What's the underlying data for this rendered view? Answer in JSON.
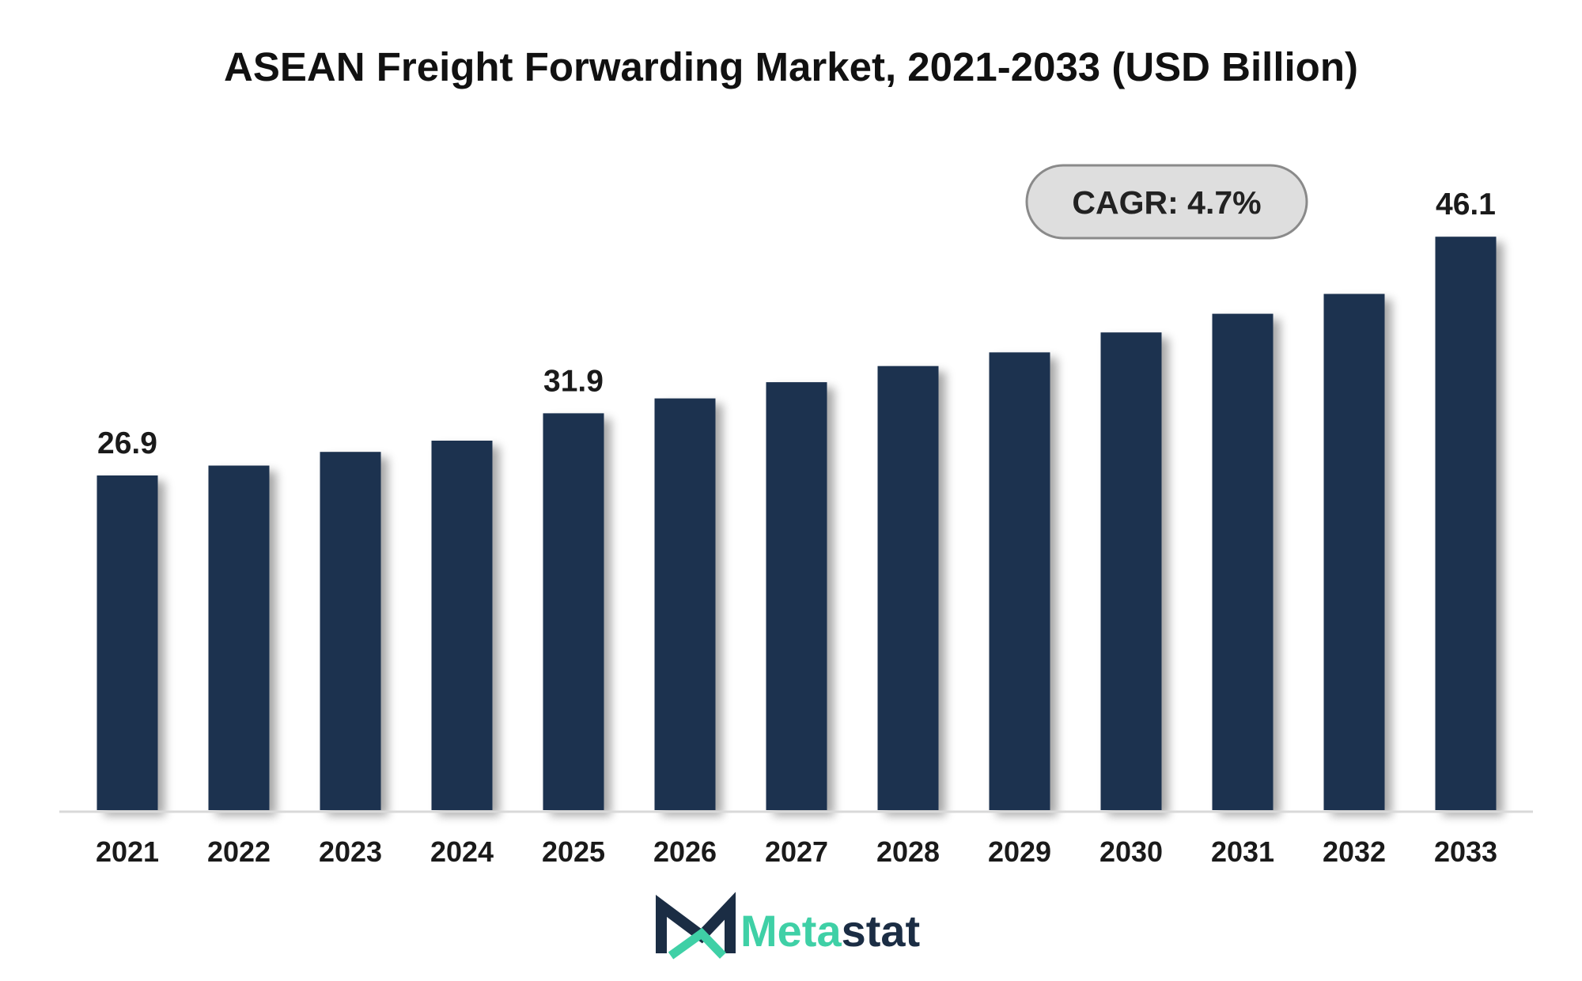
{
  "colors": {
    "bar": "#1b3150",
    "baseline": "#d9d9d9",
    "cagr_fill": "#dedede",
    "cagr_stroke": "#8a8a8a",
    "logo_accent": "#3fd0a6",
    "logo_dark": "#1b2d44"
  },
  "cagr_label": "CAGR: 4.7%",
  "logo": {
    "brand_part1": "Meta",
    "brand_part2": "stat",
    "icon": "metastat-m-logo-icon"
  },
  "chart_data": {
    "type": "bar",
    "title": "ASEAN Freight Forwarding Market, 2021-2033 (USD Billion)",
    "xlabel": "",
    "ylabel": "",
    "categories": [
      "2021",
      "2022",
      "2023",
      "2024",
      "2025",
      "2026",
      "2027",
      "2028",
      "2029",
      "2030",
      "2031",
      "2032",
      "2033"
    ],
    "values": [
      26.9,
      27.7,
      28.8,
      29.7,
      31.9,
      33.1,
      34.4,
      35.7,
      36.8,
      38.4,
      39.9,
      41.5,
      46.1
    ],
    "data_labels": [
      {
        "category": "2021",
        "text": "26.9"
      },
      {
        "category": "2025",
        "text": "31.9"
      },
      {
        "category": "2033",
        "text": "46.1"
      }
    ],
    "ylim": [
      0,
      47.7
    ],
    "grid": false,
    "legend": "none"
  }
}
